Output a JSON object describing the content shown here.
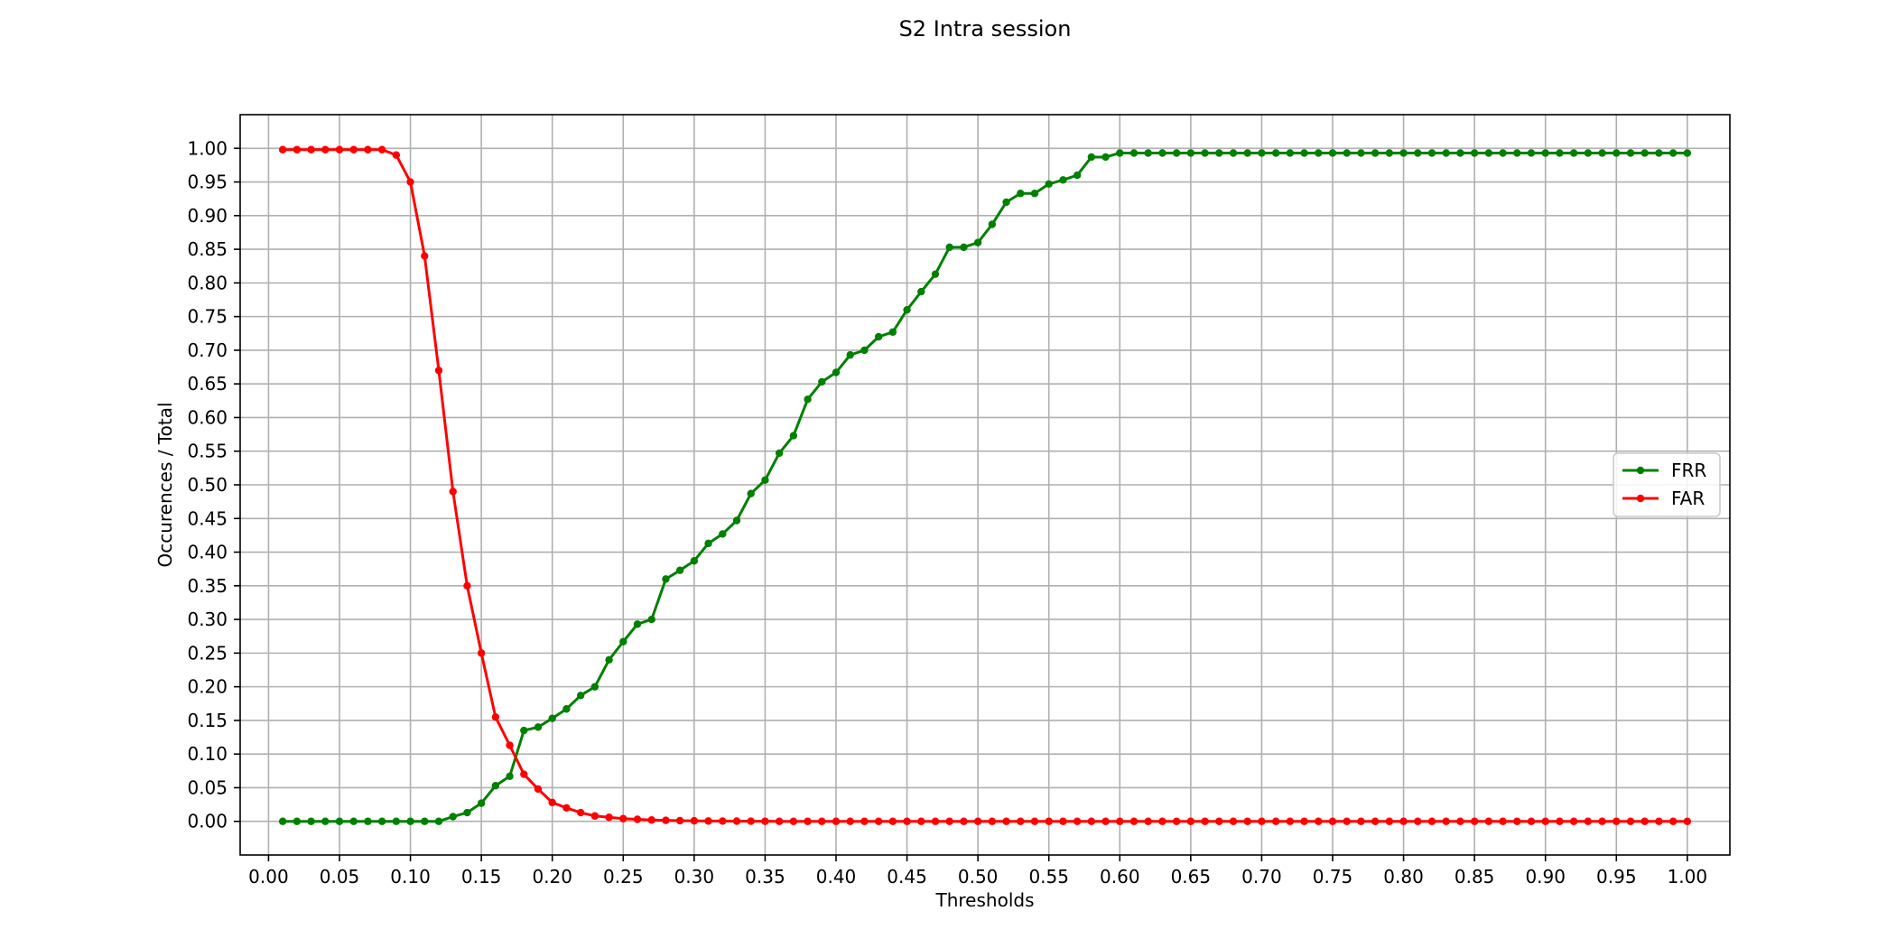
{
  "chart_data": {
    "type": "line",
    "title": "S2 Intra session",
    "xlabel": "Thresholds",
    "ylabel": "Occurences / Total",
    "xlim": [
      -0.02,
      1.03
    ],
    "ylim": [
      -0.05,
      1.05
    ],
    "x_ticks": [
      "0.00",
      "0.05",
      "0.10",
      "0.15",
      "0.20",
      "0.25",
      "0.30",
      "0.35",
      "0.40",
      "0.45",
      "0.50",
      "0.55",
      "0.60",
      "0.65",
      "0.70",
      "0.75",
      "0.80",
      "0.85",
      "0.90",
      "0.95",
      "1.00"
    ],
    "y_ticks": [
      "0.00",
      "0.05",
      "0.10",
      "0.15",
      "0.20",
      "0.25",
      "0.30",
      "0.35",
      "0.40",
      "0.45",
      "0.50",
      "0.55",
      "0.60",
      "0.65",
      "0.70",
      "0.75",
      "0.80",
      "0.85",
      "0.90",
      "0.95",
      "1.00"
    ],
    "grid": true,
    "legend_position": "center-right",
    "x": [
      0.01,
      0.02,
      0.03,
      0.04,
      0.05,
      0.06,
      0.07,
      0.08,
      0.09,
      0.1,
      0.11,
      0.12,
      0.13,
      0.14,
      0.15,
      0.16,
      0.17,
      0.18,
      0.19,
      0.2,
      0.21,
      0.22,
      0.23,
      0.24,
      0.25,
      0.26,
      0.27,
      0.28,
      0.29,
      0.3,
      0.31,
      0.32,
      0.33,
      0.34,
      0.35,
      0.36,
      0.37,
      0.38,
      0.39,
      0.4,
      0.41,
      0.42,
      0.43,
      0.44,
      0.45,
      0.46,
      0.47,
      0.48,
      0.49,
      0.5,
      0.51,
      0.52,
      0.53,
      0.54,
      0.55,
      0.56,
      0.57,
      0.58,
      0.59,
      0.6,
      0.61,
      0.62,
      0.63,
      0.64,
      0.65,
      0.66,
      0.67,
      0.68,
      0.69,
      0.7,
      0.71,
      0.72,
      0.73,
      0.74,
      0.75,
      0.76,
      0.77,
      0.78,
      0.79,
      0.8,
      0.81,
      0.82,
      0.83,
      0.84,
      0.85,
      0.86,
      0.87,
      0.88,
      0.89,
      0.9,
      0.91,
      0.92,
      0.93,
      0.94,
      0.95,
      0.96,
      0.97,
      0.98,
      0.99,
      1.0
    ],
    "series": [
      {
        "name": "FRR",
        "color": "#008000",
        "values": [
          0,
          0,
          0,
          0,
          0,
          0,
          0,
          0,
          0,
          0,
          0,
          0,
          0.007,
          0.013,
          0.027,
          0.053,
          0.067,
          0.135,
          0.14,
          0.153,
          0.167,
          0.187,
          0.2,
          0.24,
          0.267,
          0.293,
          0.3,
          0.36,
          0.373,
          0.387,
          0.413,
          0.427,
          0.447,
          0.487,
          0.507,
          0.547,
          0.573,
          0.627,
          0.653,
          0.667,
          0.693,
          0.7,
          0.72,
          0.727,
          0.76,
          0.787,
          0.813,
          0.853,
          0.853,
          0.86,
          0.887,
          0.92,
          0.933,
          0.933,
          0.947,
          0.953,
          0.96,
          0.987,
          0.987,
          0.993,
          0.993,
          0.993,
          0.993,
          0.993,
          0.993,
          0.993,
          0.993,
          0.993,
          0.993,
          0.993,
          0.993,
          0.993,
          0.993,
          0.993,
          0.993,
          0.993,
          0.993,
          0.993,
          0.993,
          0.993,
          0.993,
          0.993,
          0.993,
          0.993,
          0.993,
          0.993,
          0.993,
          0.993,
          0.993,
          0.993,
          0.993,
          0.993,
          0.993,
          0.993,
          0.993,
          0.993,
          0.993,
          0.993,
          0.993,
          0.993
        ]
      },
      {
        "name": "FAR",
        "color": "#ff0000",
        "values": [
          0.998,
          0.998,
          0.998,
          0.998,
          0.998,
          0.998,
          0.998,
          0.998,
          0.99,
          0.95,
          0.84,
          0.67,
          0.49,
          0.35,
          0.25,
          0.155,
          0.113,
          0.07,
          0.048,
          0.028,
          0.02,
          0.013,
          0.008,
          0.006,
          0.004,
          0.003,
          0.002,
          0.0015,
          0.001,
          0.0008,
          0.0005,
          0.0004,
          0.0003,
          0.0002,
          0.0001,
          0,
          0,
          0,
          0,
          0,
          0,
          0,
          0,
          0,
          0,
          0,
          0,
          0,
          0,
          0,
          0,
          0,
          0,
          0,
          0,
          0,
          0,
          0,
          0,
          0,
          0,
          0,
          0,
          0,
          0,
          0,
          0,
          0,
          0,
          0,
          0,
          0,
          0,
          0,
          0,
          0,
          0,
          0,
          0,
          0,
          0,
          0,
          0,
          0,
          0,
          0,
          0,
          0,
          0,
          0,
          0,
          0,
          0,
          0,
          0,
          0,
          0,
          0,
          0,
          0
        ]
      }
    ]
  }
}
